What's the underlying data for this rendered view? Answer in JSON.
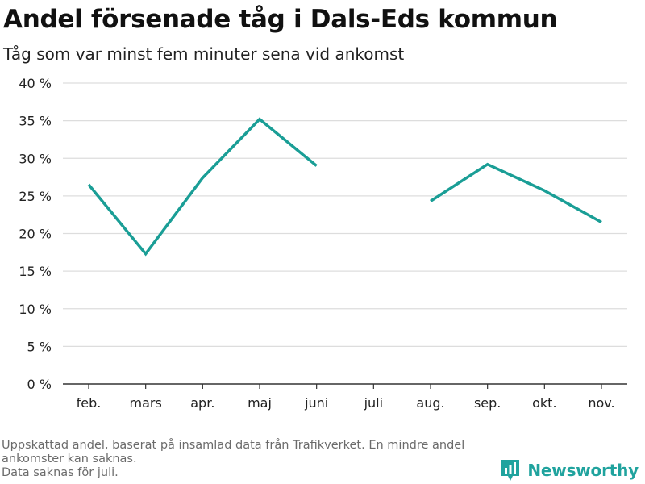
{
  "chart_data": {
    "type": "line",
    "title": "Andel försenade tåg i Dals-Eds kommun",
    "subtitle": "Tåg som var minst fem minuter sena vid ankomst",
    "categories": [
      "feb.",
      "mars",
      "apr.",
      "maj",
      "juni",
      "juli",
      "aug.",
      "sep.",
      "okt.",
      "nov."
    ],
    "series": [
      {
        "values": [
          26.5,
          17.3,
          27.4,
          35.2,
          29.0,
          null,
          24.3,
          29.2,
          25.7,
          21.5
        ]
      }
    ],
    "ylim": [
      0,
      40
    ],
    "yticks": [
      0,
      5,
      10,
      15,
      20,
      25,
      30,
      35,
      40
    ],
    "ytick_labels": [
      "0 %",
      "5 %",
      "10 %",
      "15 %",
      "20 %",
      "25 %",
      "30 %",
      "35 %",
      "40 %"
    ],
    "grid": true,
    "legend": "none",
    "colors": {
      "line": "#1a9e96",
      "grid": "#dddddd",
      "axis": "#333333",
      "text": "#222222"
    }
  },
  "footnote": {
    "line1": "Uppskattad andel, baserat på insamlad data från Trafikverket. En mindre andel ankomster kan saknas.",
    "line2": "Data saknas för juli."
  },
  "brand": {
    "name": "Newsworthy",
    "icon": "bar-chart-logo-icon",
    "color": "#20a39e"
  }
}
